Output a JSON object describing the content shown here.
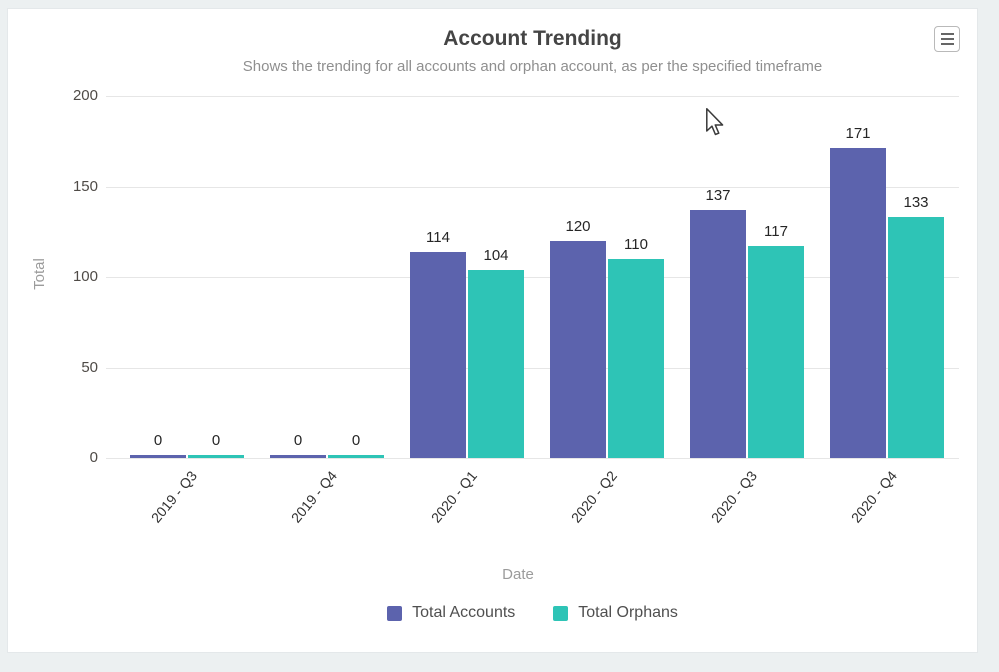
{
  "chart_data": {
    "type": "bar",
    "title": "Account Trending",
    "subtitle": "Shows the trending for all accounts and orphan account, as per the specified timeframe",
    "xlabel": "Date",
    "ylabel": "Total",
    "categories": [
      "2019 - Q3",
      "2019 - Q4",
      "2020 - Q1",
      "2020 - Q2",
      "2020 - Q3",
      "2020 - Q4"
    ],
    "series": [
      {
        "name": "Total Accounts",
        "color": "#5c63ad",
        "values": [
          0,
          0,
          114,
          120,
          137,
          171
        ]
      },
      {
        "name": "Total Orphans",
        "color": "#2ec4b6",
        "values": [
          0,
          0,
          104,
          110,
          117,
          133
        ]
      }
    ],
    "ylim": [
      0,
      200
    ],
    "yticks": [
      0,
      50,
      100,
      150,
      200
    ],
    "grid": true,
    "data_labels": true,
    "legend_position": "bottom"
  },
  "icons": {
    "menu": "hamburger-menu-icon",
    "cursor": "mouse-pointer-icon"
  },
  "colors": {
    "page_background": "#ecf0f1",
    "card_background": "#ffffff",
    "gridline": "#e6e6e6",
    "title_text": "#454545",
    "subtitle_text": "#8f8f8f",
    "axis_title_text": "#9b9b9b",
    "tick_text": "#4f4b47",
    "value_label_text": "#262626",
    "legend_text": "#4f4f4f"
  }
}
